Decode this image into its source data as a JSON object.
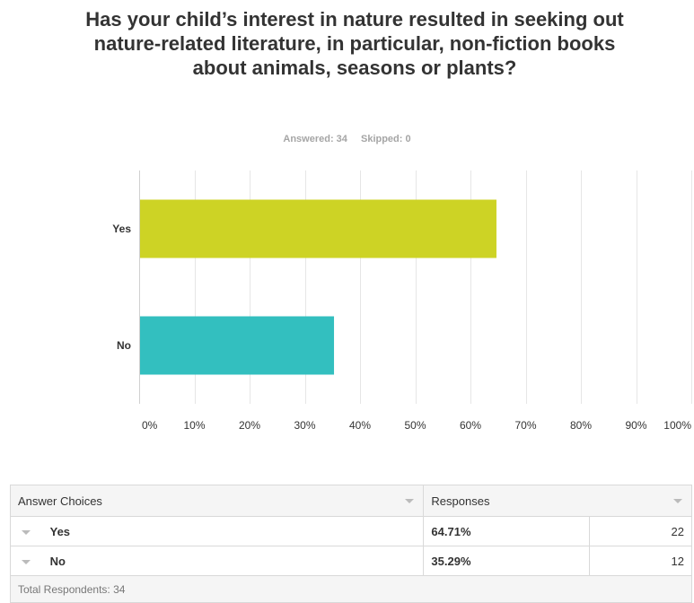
{
  "title": "Has your child’s interest in nature resulted in seeking out nature-related literature, in particular, non-fiction books about animals, seasons or plants?",
  "stats": {
    "answered": "Answered: 34",
    "skipped": "Skipped: 0"
  },
  "chart_data": {
    "type": "bar",
    "orientation": "horizontal",
    "categories": [
      "Yes",
      "No"
    ],
    "values": [
      64.71,
      35.29
    ],
    "colors": [
      "#cdd325",
      "#33bfbf"
    ],
    "xlim": [
      0,
      100
    ],
    "xticks": [
      "0%",
      "10%",
      "20%",
      "30%",
      "40%",
      "50%",
      "60%",
      "70%",
      "80%",
      "90%",
      "100%"
    ],
    "grid": true
  },
  "table": {
    "headers": {
      "choices": "Answer Choices",
      "responses": "Responses"
    },
    "rows": [
      {
        "choice": "Yes",
        "percent": "64.71%",
        "count": "22"
      },
      {
        "choice": "No",
        "percent": "35.29%",
        "count": "12"
      }
    ],
    "footer": "Total Respondents: 34"
  }
}
